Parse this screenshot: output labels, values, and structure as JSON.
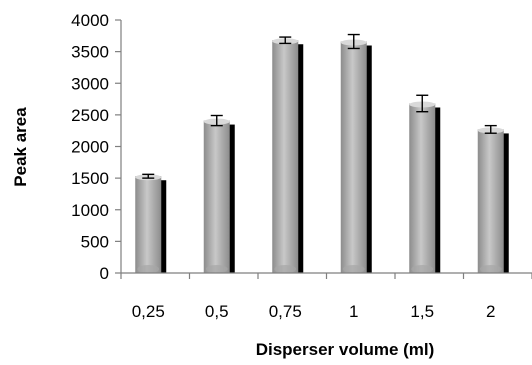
{
  "chart_data": {
    "type": "bar",
    "title": "",
    "xlabel": "Disperser volume (ml)",
    "ylabel": "Peak area",
    "categories": [
      "0,25",
      "0,5",
      "0,75",
      "1",
      "1,5",
      "2"
    ],
    "values": [
      1530,
      2410,
      3680,
      3660,
      2680,
      2270
    ],
    "error": [
      30,
      80,
      50,
      110,
      130,
      60
    ],
    "ylim": [
      0,
      4000
    ],
    "yticks": [
      0,
      500,
      1000,
      1500,
      2000,
      2500,
      3000,
      3500,
      4000
    ],
    "grid": false,
    "legend": "none",
    "colors": {
      "bar_light": "#d9d9d9",
      "bar_mid": "#a6a6a6",
      "bar_dark": "#7f7f7f",
      "bar_shadow": "#000000",
      "axis": "#7f7f7f",
      "error": "#000000"
    }
  }
}
